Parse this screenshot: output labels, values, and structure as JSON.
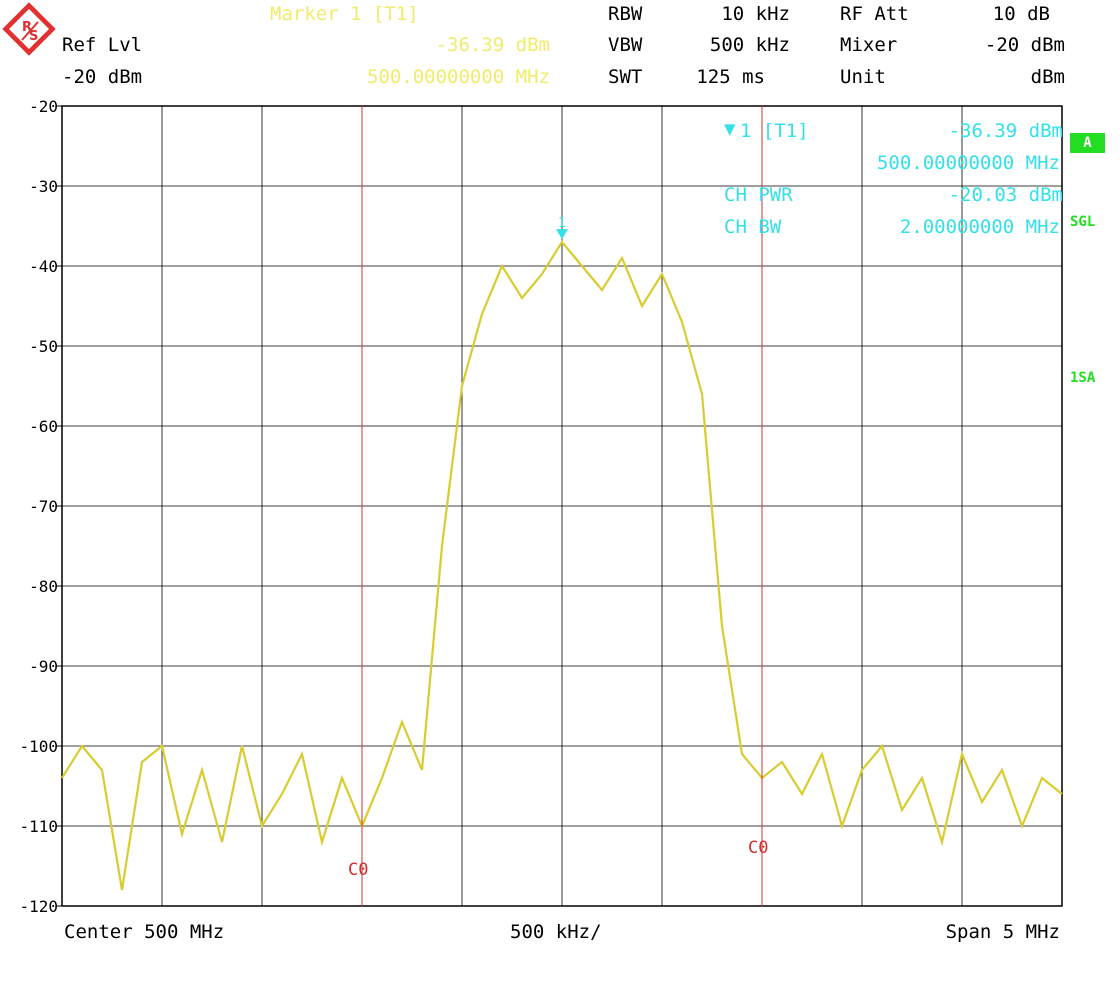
{
  "header": {
    "ref_lvl_label": "Ref Lvl",
    "ref_lvl_value": "-20 dBm",
    "marker_title": "Marker 1 [T1]",
    "marker_level": "-36.39 dBm",
    "marker_freq": "500.00000000 MHz",
    "rbw_label": "RBW",
    "rbw_value": "10 kHz",
    "vbw_label": "VBW",
    "vbw_value": "500 kHz",
    "swt_label": "SWT",
    "swt_value": "125 ms",
    "rf_att_label": "RF Att",
    "rf_att_value": "10 dB",
    "mixer_label": "Mixer",
    "mixer_value": "-20 dBm",
    "unit_label": "Unit",
    "unit_value": "dBm"
  },
  "marker_box": {
    "line1_label": "1 [T1]",
    "line1_value": "-36.39 dBm",
    "line2_value": "500.00000000 MHz",
    "ch_pwr_label": "CH PWR",
    "ch_pwr_value": "-20.03 dBm",
    "ch_bw_label": "CH BW",
    "ch_bw_value": "2.00000000 MHz"
  },
  "side_labels": {
    "a": "A",
    "sgl": "SGL",
    "sa": "1SA"
  },
  "footer": {
    "center": "Center 500 MHz",
    "div": "500 kHz/",
    "span": "Span 5 MHz"
  },
  "colors": {
    "trace": "#d8cc30",
    "grid": "#000000",
    "channel_line": "#d03030",
    "marker": "#33e0e8"
  },
  "chart_data": {
    "type": "line",
    "x_unit": "MHz",
    "y_unit": "dBm",
    "xlim": [
      497.5,
      502.5
    ],
    "ylim": [
      -120,
      -20
    ],
    "yticks": [
      -20,
      -30,
      -40,
      -50,
      -60,
      -70,
      -80,
      -90,
      -100,
      -110,
      -120
    ],
    "channel_lines": [
      499.0,
      501.0
    ],
    "channel_line_label": "C0",
    "marker": {
      "label": "1",
      "x": 500.0,
      "y": -36.39
    },
    "series": [
      {
        "x": [
          497.5,
          497.6,
          497.7,
          497.8,
          497.9,
          498.0,
          498.1,
          498.2,
          498.3,
          498.4,
          498.5,
          498.6,
          498.7,
          498.8,
          498.9,
          499.0,
          499.1,
          499.2,
          499.3,
          499.4,
          499.5,
          499.6,
          499.7,
          499.8,
          499.9,
          500.0,
          500.1,
          500.2,
          500.3,
          500.4,
          500.5,
          500.6,
          500.7,
          500.8,
          500.9,
          501.0,
          501.1,
          501.2,
          501.3,
          501.4,
          501.5,
          501.6,
          501.7,
          501.8,
          501.9,
          502.0,
          502.1,
          502.2,
          502.3,
          502.4,
          502.5
        ],
        "y": [
          -104,
          -100,
          -103,
          -118,
          -102,
          -100,
          -111,
          -103,
          -112,
          -100,
          -110,
          -106,
          -101,
          -112,
          -104,
          -110,
          -104,
          -97,
          -103,
          -75,
          -55,
          -46,
          -40,
          -44,
          -41,
          -37,
          -40,
          -43,
          -39,
          -45,
          -41,
          -47,
          -56,
          -85,
          -101,
          -104,
          -102,
          -106,
          -101,
          -110,
          -103,
          -100,
          -108,
          -104,
          -112,
          -101,
          -107,
          -103,
          -110,
          -104,
          -106
        ]
      }
    ]
  }
}
